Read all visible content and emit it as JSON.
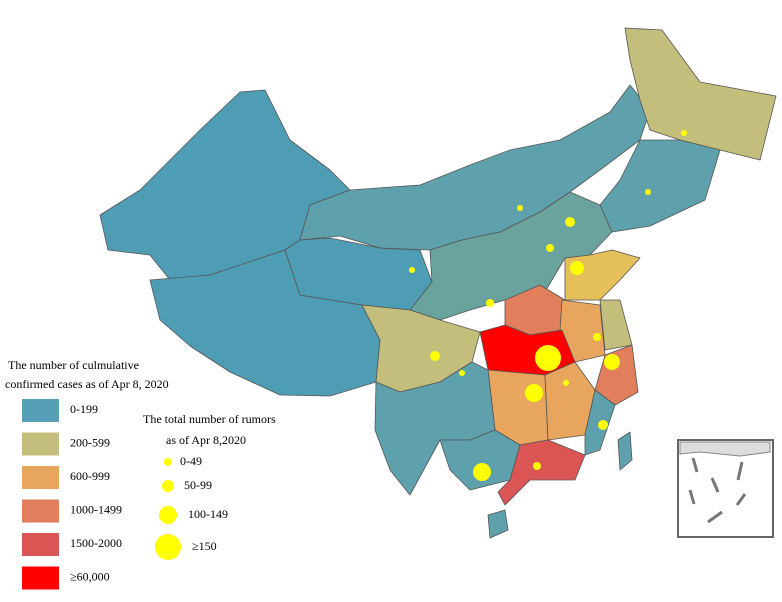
{
  "legend_cases": {
    "title_line1": "The number of culmulative",
    "title_line2": "confirmed cases as of Apr 8, 2020",
    "items": [
      {
        "label": "0-199",
        "color": "#55a0b6"
      },
      {
        "label": "200-599",
        "color": "#c3be7c"
      },
      {
        "label": "600-999",
        "color": "#e8a55e"
      },
      {
        "label": "1000-1499",
        "color": "#e17e5c"
      },
      {
        "label": "1500-2000",
        "color": "#dc5555"
      },
      {
        "label": "≥60,000",
        "color": "#ff0000"
      }
    ]
  },
  "legend_rumors": {
    "title_line1": "The total number of rumors",
    "title_line2": "as of Apr 8,2020",
    "items": [
      {
        "label": "0-49"
      },
      {
        "label": "50-99"
      },
      {
        "label": "100-149"
      },
      {
        "label": "≥150"
      }
    ]
  }
}
